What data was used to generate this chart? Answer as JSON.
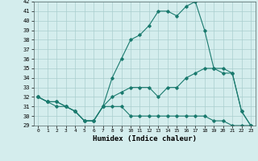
{
  "title": "",
  "xlabel": "Humidex (Indice chaleur)",
  "ylabel": "",
  "background_color": "#d4eded",
  "grid_color": "#aacece",
  "line_color": "#1a7a6e",
  "x": [
    0,
    1,
    2,
    3,
    4,
    5,
    6,
    7,
    8,
    9,
    10,
    11,
    12,
    13,
    14,
    15,
    16,
    17,
    18,
    19,
    20,
    21,
    22,
    23
  ],
  "line2": [
    32,
    31.5,
    31,
    31,
    30.5,
    29.5,
    29.5,
    31,
    34,
    36,
    38,
    38.5,
    39.5,
    41,
    41,
    40.5,
    41.5,
    42,
    39,
    35,
    35,
    34.5,
    30.5,
    29
  ],
  "line1": [
    32,
    31.5,
    31.5,
    31,
    30.5,
    29.5,
    29.5,
    31,
    32,
    32.5,
    33,
    33,
    33,
    32,
    33,
    33,
    34,
    34.5,
    35,
    35,
    34.5,
    34.5,
    30.5,
    29
  ],
  "line3": [
    32,
    31.5,
    31.5,
    31,
    30.5,
    29.5,
    29.5,
    31,
    31,
    31,
    30,
    30,
    30,
    30,
    30,
    30,
    30,
    30,
    30,
    29.5,
    29.5,
    29,
    29,
    29
  ],
  "ylim": [
    29,
    42
  ],
  "yticks": [
    29,
    30,
    31,
    32,
    33,
    34,
    35,
    36,
    37,
    38,
    39,
    40,
    41,
    42
  ],
  "xticks": [
    0,
    1,
    2,
    3,
    4,
    5,
    6,
    7,
    8,
    9,
    10,
    11,
    12,
    13,
    14,
    15,
    16,
    17,
    18,
    19,
    20,
    21,
    22,
    23
  ]
}
